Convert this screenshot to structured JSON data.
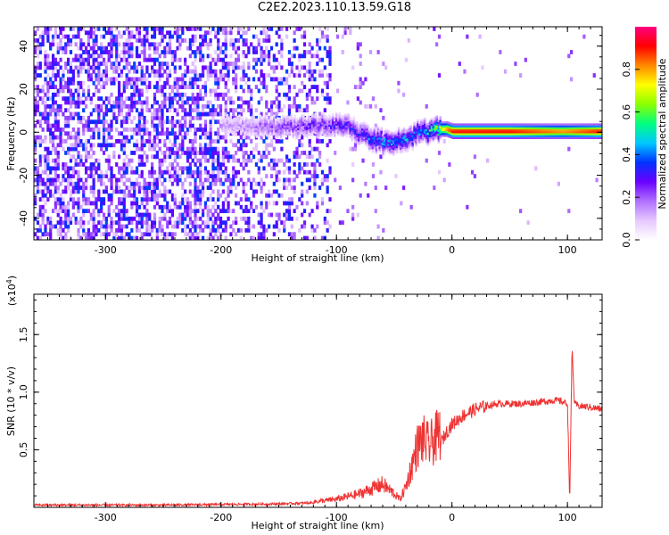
{
  "title": "C2E2.2023.110.13.59.G18",
  "chart_data": [
    {
      "type": "heatmap",
      "xlabel": "Height of straight line (km)",
      "ylabel": "Frequency (Hz)",
      "xlim": [
        -362,
        130
      ],
      "ylim": [
        -50,
        49
      ],
      "x_ticks": [
        -300,
        -200,
        -100,
        0,
        100
      ],
      "y_ticks": [
        -40,
        -20,
        0,
        20,
        40
      ],
      "colorbar": {
        "label": "Normalized spectral amplitude",
        "range": [
          0,
          1
        ],
        "ticks": [
          0.0,
          0.2,
          0.4,
          0.6,
          0.8
        ],
        "colors": [
          "#ffffff",
          "#e6c8ff",
          "#b070ff",
          "#6a00ff",
          "#0033ff",
          "#00c8ff",
          "#00ff80",
          "#8cff00",
          "#ffff00",
          "#ff8800",
          "#ff0000",
          "#ff0080"
        ]
      },
      "ridge": {
        "x": [
          -190,
          -150,
          -110,
          -90,
          -75,
          -60,
          -45,
          -30,
          -15,
          -5,
          0,
          50,
          95,
          130
        ],
        "frequency": [
          3,
          2,
          3,
          2,
          -2,
          -5,
          -4,
          -1,
          1,
          1,
          0,
          0,
          0,
          0
        ],
        "amplitude": [
          0.15,
          0.25,
          0.3,
          0.35,
          0.4,
          0.5,
          0.45,
          0.45,
          0.6,
          0.9,
          1.0,
          1.0,
          0.9,
          1.0
        ]
      }
    },
    {
      "type": "line",
      "xlabel": "Height of straight line (km)",
      "ylabel": "SNR (10 * v/v)",
      "y_multiplier": "(x10^4)",
      "xlim": [
        -362,
        130
      ],
      "ylim": [
        0,
        1.85
      ],
      "x_ticks": [
        -300,
        -200,
        -100,
        0,
        100
      ],
      "y_ticks": [
        0.5,
        1.0,
        1.5
      ],
      "series": [
        {
          "color": "#ee3333",
          "x": [
            -362,
            -300,
            -250,
            -200,
            -150,
            -120,
            -100,
            -80,
            -60,
            -50,
            -45,
            -40,
            -35,
            -30,
            -25,
            -20,
            -15,
            -10,
            -5,
            0,
            10,
            20,
            30,
            40,
            50,
            60,
            70,
            80,
            90,
            95,
            100,
            102,
            104,
            106,
            110,
            120,
            130
          ],
          "y": [
            0.02,
            0.02,
            0.02,
            0.025,
            0.03,
            0.04,
            0.06,
            0.1,
            0.17,
            0.1,
            0.06,
            0.15,
            0.3,
            0.45,
            0.5,
            0.45,
            0.5,
            0.55,
            0.65,
            0.72,
            0.8,
            0.85,
            0.88,
            0.9,
            0.9,
            0.9,
            0.91,
            0.92,
            0.93,
            0.92,
            0.9,
            0.05,
            1.4,
            0.9,
            0.88,
            0.87,
            0.85
          ]
        }
      ]
    }
  ]
}
